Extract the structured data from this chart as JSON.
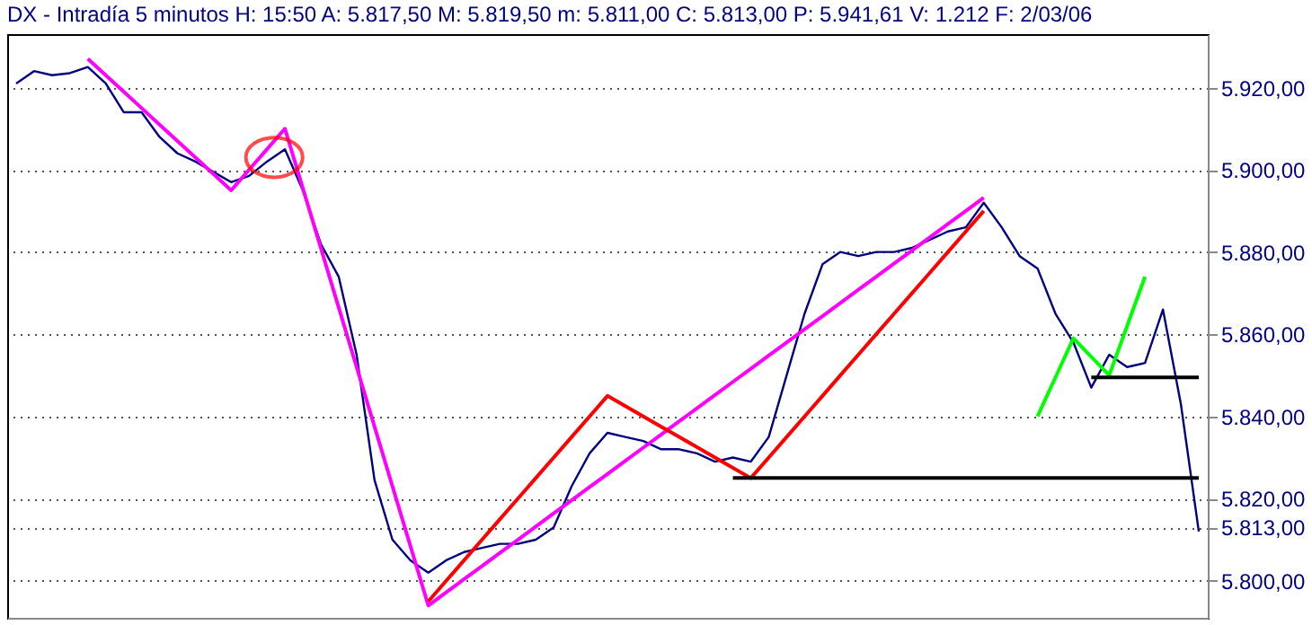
{
  "chart_data": {
    "type": "line",
    "title": "DX - Intradía 5 minutos H: 15:50 A: 5.817,50 M: 5.819,50 m: 5.811,00 C: 5.813,00 P: 5.941,61 V: 1.212 F: 2/03/06",
    "categories": [
      null,
      null,
      null,
      null,
      null,
      null,
      null,
      null,
      null,
      null,
      null,
      null,
      null,
      null,
      null,
      null,
      null,
      null,
      null,
      null,
      null,
      null,
      null,
      null,
      null,
      null,
      null,
      null,
      null,
      null,
      null,
      null,
      null,
      null,
      null,
      null,
      null,
      null,
      null,
      null,
      null,
      null,
      null,
      null,
      null,
      null,
      null,
      null,
      null,
      null,
      null,
      null,
      null,
      null,
      null,
      null,
      null,
      null,
      null,
      null,
      null,
      null,
      null,
      null,
      null,
      null,
      null
    ],
    "series": [
      {
        "color": "#000080",
        "values": [
          5921,
          5924,
          5923,
          5923.5,
          5925,
          5921,
          5914,
          5914,
          5908,
          5904,
          5902,
          5899.5,
          5897,
          5898.5,
          5902,
          5905,
          5895,
          5882,
          5874,
          5855,
          5824.5,
          5810,
          5805,
          5802,
          5805,
          5807,
          5808,
          5809,
          5809,
          5810,
          5813,
          5823,
          5831,
          5836,
          5835,
          5834,
          5832,
          5832,
          5831,
          5829,
          5830,
          5829,
          5835,
          5850,
          5865,
          5877,
          5880,
          5879,
          5880,
          5880,
          5881,
          5883,
          5885,
          5886,
          5892,
          5886,
          5879,
          5876,
          5865,
          5858,
          5847,
          5855,
          5852,
          5853,
          5866,
          5843,
          5812
        ]
      },
      {
        "color": "#ff00ff",
        "values": [
          null,
          null,
          null,
          null,
          5927,
          5923,
          5919,
          5915,
          5911,
          5907,
          5903,
          5899,
          5895,
          5900,
          5905,
          5910,
          5895.5,
          5881,
          5866.5,
          5852,
          5837.5,
          5823,
          5808.5,
          5794,
          5797.2,
          5800.4,
          5803.6,
          5806.8,
          5810,
          5813.2,
          5816.4,
          5819.6,
          5822.8,
          5826,
          5829.2,
          5832.4,
          5835.6,
          5838.8,
          5842,
          5845.2,
          5848.4,
          5851.6,
          5854.8,
          5858,
          5861.2,
          5864.4,
          5867.6,
          5870.8,
          5874,
          5877.2,
          5880.4,
          5883.6,
          5886.8,
          5890,
          5893.2,
          null,
          null,
          null,
          null,
          null,
          null,
          null,
          null,
          null,
          null,
          null,
          null
        ]
      },
      {
        "color": "#ff0000",
        "values": [
          null,
          null,
          null,
          null,
          null,
          null,
          null,
          null,
          null,
          null,
          null,
          null,
          null,
          null,
          null,
          null,
          null,
          null,
          null,
          null,
          null,
          null,
          null,
          5795,
          5800,
          5805,
          5810,
          5815,
          5820,
          5825,
          5830,
          5835,
          5840,
          5845,
          5842.5,
          5840,
          5837.5,
          5835,
          5832.5,
          5830,
          5827.5,
          5825,
          5830,
          5835,
          5840,
          5845,
          5850,
          5855,
          5860,
          5865,
          5870,
          5875,
          5880,
          5885,
          5890,
          null,
          null,
          null,
          null,
          null,
          null,
          null,
          null,
          null,
          null,
          null,
          null
        ]
      },
      {
        "color": "#00ff00",
        "values": [
          null,
          null,
          null,
          null,
          null,
          null,
          null,
          null,
          null,
          null,
          null,
          null,
          null,
          null,
          null,
          null,
          null,
          null,
          null,
          null,
          null,
          null,
          null,
          null,
          null,
          null,
          null,
          null,
          null,
          null,
          null,
          null,
          null,
          null,
          null,
          null,
          null,
          null,
          null,
          null,
          null,
          null,
          null,
          null,
          null,
          null,
          null,
          null,
          null,
          null,
          null,
          null,
          null,
          null,
          null,
          null,
          null,
          5840,
          5849.5,
          5859,
          5854.5,
          5850,
          5862,
          5874,
          null,
          null,
          null
        ]
      },
      {
        "color": "#000000",
        "values": [
          null,
          null,
          null,
          null,
          null,
          null,
          null,
          null,
          null,
          null,
          null,
          null,
          null,
          null,
          null,
          null,
          null,
          null,
          null,
          null,
          null,
          null,
          null,
          null,
          null,
          null,
          null,
          null,
          null,
          null,
          null,
          null,
          null,
          null,
          null,
          null,
          null,
          null,
          null,
          null,
          5825,
          5825,
          5825,
          5825,
          5825,
          5825,
          5825,
          5825,
          5825,
          5825,
          5825,
          5825,
          5825,
          5825,
          5825,
          5825,
          5825,
          5825,
          5825,
          5825,
          5825,
          5825,
          5825,
          5825,
          5825,
          5825,
          5825
        ]
      },
      {
        "color": "#000000",
        "values": [
          null,
          null,
          null,
          null,
          null,
          null,
          null,
          null,
          null,
          null,
          null,
          null,
          null,
          null,
          null,
          null,
          null,
          null,
          null,
          null,
          null,
          null,
          null,
          null,
          null,
          null,
          null,
          null,
          null,
          null,
          null,
          null,
          null,
          null,
          null,
          null,
          null,
          null,
          null,
          null,
          null,
          null,
          null,
          null,
          null,
          null,
          null,
          null,
          null,
          null,
          null,
          null,
          null,
          null,
          null,
          null,
          null,
          null,
          null,
          null,
          5849.5,
          5849.5,
          5849.5,
          5849.5,
          5849.5,
          5849.5,
          5849.5
        ]
      }
    ],
    "ylim": [
      5791,
      5933
    ],
    "yticks": [
      {
        "value": 5800,
        "label": "5.800,00"
      },
      {
        "value": 5813,
        "label": "5.813,00"
      },
      {
        "value": 5820,
        "label": "5.820,00"
      },
      {
        "value": 5840,
        "label": "5.840,00"
      },
      {
        "value": 5860,
        "label": "5.860,00"
      },
      {
        "value": 5880,
        "label": "5.880,00"
      },
      {
        "value": 5900,
        "label": "5.900,00"
      },
      {
        "value": 5920,
        "label": "5.920,00"
      }
    ],
    "tick_labels": "y",
    "grid": "y",
    "marker": "none",
    "line_style": "solid"
  }
}
